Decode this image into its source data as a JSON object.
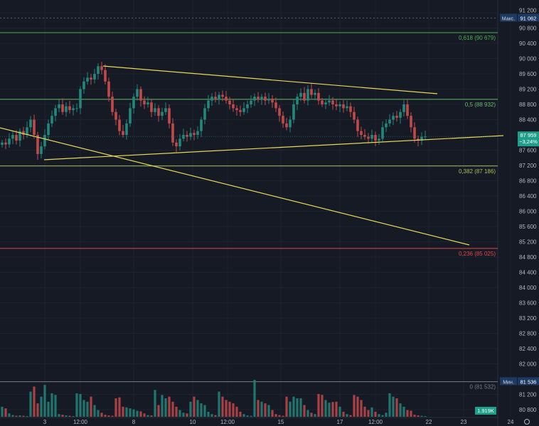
{
  "chart_data": {
    "type": "candlestick",
    "price_ticks": [
      91200,
      90800,
      90400,
      90000,
      89600,
      89200,
      88800,
      88400,
      87600,
      87200,
      86800,
      86400,
      86000,
      85600,
      85200,
      84800,
      84400,
      84000,
      83600,
      83200,
      82800,
      82400,
      82000,
      81200,
      80800
    ],
    "time_ticks": [
      {
        "label": "3",
        "index": 12
      },
      {
        "label": "12:00",
        "index": 22
      },
      {
        "label": "8",
        "index": 37
      },
      {
        "label": "10",
        "index": 53.6
      },
      {
        "label": "12:00",
        "index": 63.4
      },
      {
        "label": "15",
        "index": 78.4
      },
      {
        "label": "17",
        "index": 95
      },
      {
        "label": "12:00",
        "index": 105
      },
      {
        "label": "22",
        "index": 120
      },
      {
        "label": "23",
        "index": 129.8
      },
      {
        "label": "24",
        "index": 143
      }
    ],
    "closes": [
      87800,
      87750,
      87900,
      88000,
      87850,
      88100,
      88000,
      88200,
      88400,
      88000,
      87500,
      87700,
      88000,
      88300,
      88500,
      88700,
      88800,
      88600,
      88750,
      88650,
      88700,
      88700,
      89200,
      89400,
      89500,
      89450,
      89600,
      89800,
      89700,
      89400,
      89000,
      88600,
      88400,
      88100,
      88000,
      88300,
      88700,
      89000,
      89200,
      88900,
      88800,
      88850,
      88600,
      88700,
      88500,
      88600,
      88700,
      88300,
      87800,
      87700,
      87900,
      88000,
      87950,
      88050,
      88000,
      88100,
      88400,
      88700,
      88900,
      89000,
      88950,
      89050,
      89000,
      88900,
      88800,
      88700,
      88650,
      88600,
      88700,
      88800,
      88900,
      89000,
      88950,
      89000,
      88900,
      88950,
      88850,
      88700,
      88500,
      88300,
      88200,
      88400,
      88800,
      89000,
      89100,
      88900,
      89200,
      89050,
      89100,
      88900,
      88800,
      88850,
      88900,
      88800,
      88750,
      88800,
      88700,
      88750,
      88600,
      88400,
      88100,
      88000,
      87950,
      87900,
      88000,
      87850,
      87900,
      88200,
      88300,
      88400,
      88500,
      88450,
      88600,
      88800,
      88500,
      88200,
      87900,
      87850,
      87950,
      87960
    ],
    "volumes": [
      30,
      25,
      10,
      5,
      3,
      4,
      3,
      2,
      75,
      90,
      40,
      60,
      95,
      45,
      70,
      65,
      8,
      6,
      4,
      3,
      2,
      70,
      68,
      50,
      45,
      60,
      35,
      20,
      12,
      6,
      4,
      3,
      55,
      58,
      30,
      28,
      25,
      22,
      18,
      16,
      10,
      5,
      4,
      80,
      35,
      65,
      55,
      60,
      45,
      30,
      20,
      12,
      10,
      45,
      60,
      50,
      40,
      35,
      15,
      8,
      5,
      75,
      60,
      50,
      45,
      40,
      30,
      15,
      8,
      4,
      3,
      110,
      50,
      45,
      40,
      35,
      20,
      8,
      5,
      3,
      60,
      45,
      60,
      55,
      55,
      35,
      20,
      12,
      8,
      68,
      65,
      50,
      42,
      44,
      45,
      30,
      15,
      8,
      5,
      65,
      60,
      50,
      30,
      20,
      28,
      15,
      8,
      5,
      12,
      70,
      60,
      55,
      40,
      30,
      20,
      18,
      6,
      4,
      3,
      2
    ],
    "volume_label": "1.919K",
    "fib_levels": [
      {
        "label": "0,618 (90 679)",
        "price": 90679,
        "color": "#4caf50"
      },
      {
        "label": "0,5 (88 932)",
        "price": 88932,
        "color": "#66bb6a"
      },
      {
        "label": "0,382 (87 186)",
        "price": 87186,
        "color": "#a5c05a"
      },
      {
        "label": "0,236 (85 025)",
        "price": 85025,
        "color": "#e04848"
      },
      {
        "label": "0 (81 532)",
        "price": 81532,
        "color": "#787b86"
      }
    ],
    "trend_lines": [
      {
        "from": [
          28.4,
          89805
        ],
        "to": [
          122.4,
          89079
        ]
      },
      {
        "from": [
          11.8,
          87349
        ],
        "to": [
          141,
          87981
        ]
      },
      {
        "from": [
          -0.6,
          88186
        ],
        "to": [
          131.4,
          85116
        ]
      }
    ],
    "max": {
      "label": "Макс.",
      "value": "91 062",
      "price": 91062
    },
    "min": {
      "label": "Мин.",
      "value": "81 536",
      "price": 81536
    },
    "last_price": {
      "value": "87 959",
      "change": "−3,24%",
      "price": 87959
    },
    "colors": {
      "up": "#22877c",
      "down": "#c2494a",
      "trend": "#e6d85a",
      "bg": "#161a25"
    }
  },
  "settings_icon": "gear-icon"
}
